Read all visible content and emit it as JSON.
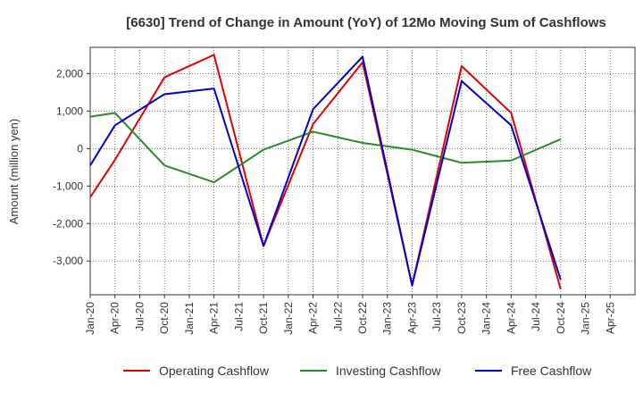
{
  "chart_data": {
    "type": "line",
    "title": "[6630]  Trend of Change in Amount (YoY) of 12Mo Moving Sum of Cashflows",
    "xlabel": "",
    "ylabel": "Amount (million yen)",
    "ylim": [
      -3900,
      2700
    ],
    "yticks": [
      2000,
      1000,
      0,
      -1000,
      -2000,
      -3000
    ],
    "ytick_labels": [
      "2,000",
      "1,000",
      "0",
      "-1,000",
      "-2,000",
      "-3,000"
    ],
    "categories": [
      "Jan-20",
      "Apr-20",
      "Jul-20",
      "Oct-20",
      "Jan-21",
      "Apr-21",
      "Jul-21",
      "Oct-21",
      "Jan-22",
      "Apr-22",
      "Jul-22",
      "Oct-22",
      "Jan-23",
      "Apr-23",
      "Jul-23",
      "Oct-23",
      "Jan-24",
      "Apr-24",
      "Jul-24",
      "Oct-24",
      "Jan-25",
      "Apr-25"
    ],
    "grid": true,
    "legend_position": "bottom",
    "series": [
      {
        "name": "Operating Cashflow",
        "color": "#e00000",
        "values": [
          -1300,
          -300,
          null,
          1900,
          null,
          2500,
          null,
          -2600,
          null,
          650,
          null,
          2300,
          null,
          -3650,
          null,
          2200,
          null,
          950,
          null,
          -3750,
          null,
          null
        ]
      },
      {
        "name": "Investing Cashflow",
        "color": "#2a8a2a",
        "values": [
          850,
          950,
          null,
          -450,
          null,
          -900,
          null,
          -30,
          null,
          450,
          null,
          150,
          null,
          -30,
          null,
          -380,
          null,
          -320,
          null,
          250,
          null,
          null
        ]
      },
      {
        "name": "Free Cashflow",
        "color": "#0000cc",
        "values": [
          -450,
          620,
          null,
          1450,
          null,
          1600,
          null,
          -2600,
          null,
          1050,
          null,
          2450,
          null,
          -3650,
          null,
          1800,
          null,
          620,
          null,
          -3500,
          null,
          null
        ]
      }
    ]
  }
}
